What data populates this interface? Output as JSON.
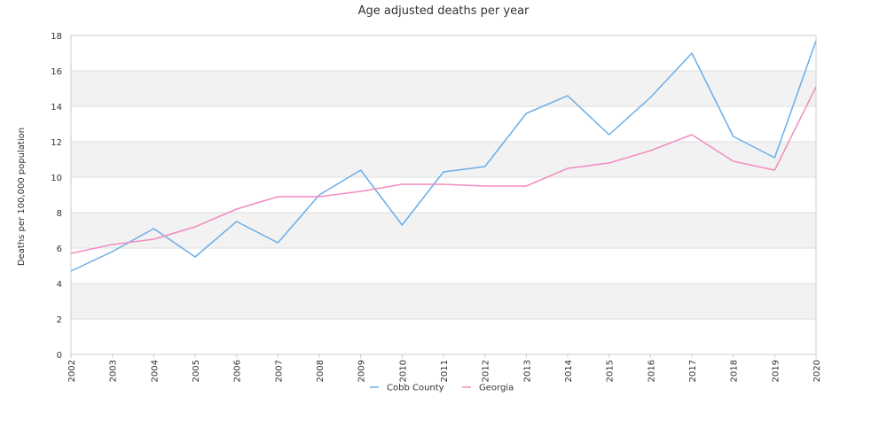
{
  "chart_data": {
    "type": "line",
    "title": "Age adjusted deaths per year",
    "xlabel": "",
    "ylabel": "Deaths per 100,000 population",
    "x": [
      "2002",
      "2003",
      "2004",
      "2005",
      "2006",
      "2007",
      "2008",
      "2009",
      "2010",
      "2011",
      "2012",
      "2013",
      "2014",
      "2015",
      "2016",
      "2017",
      "2018",
      "2019",
      "2020"
    ],
    "ylim": [
      0,
      18
    ],
    "yticks": [
      "0",
      "2",
      "4",
      "6",
      "8",
      "10",
      "12",
      "14",
      "16",
      "18"
    ],
    "grid": "horizontal alternating bands",
    "legend_position": "bottom",
    "series": [
      {
        "name": "Cobb County",
        "color": "#6aaee8",
        "values": [
          4.7,
          5.8,
          7.1,
          5.5,
          7.5,
          6.3,
          9.0,
          10.4,
          7.3,
          10.3,
          10.6,
          13.6,
          14.6,
          12.4,
          14.5,
          17.0,
          12.3,
          11.1,
          17.7
        ]
      },
      {
        "name": "Georgia",
        "color": "#f08cc0",
        "values": [
          5.7,
          6.2,
          6.5,
          7.2,
          8.2,
          8.9,
          8.9,
          9.2,
          9.6,
          9.6,
          9.5,
          9.5,
          10.5,
          10.8,
          11.5,
          12.4,
          10.9,
          10.4,
          15.1
        ]
      }
    ]
  }
}
